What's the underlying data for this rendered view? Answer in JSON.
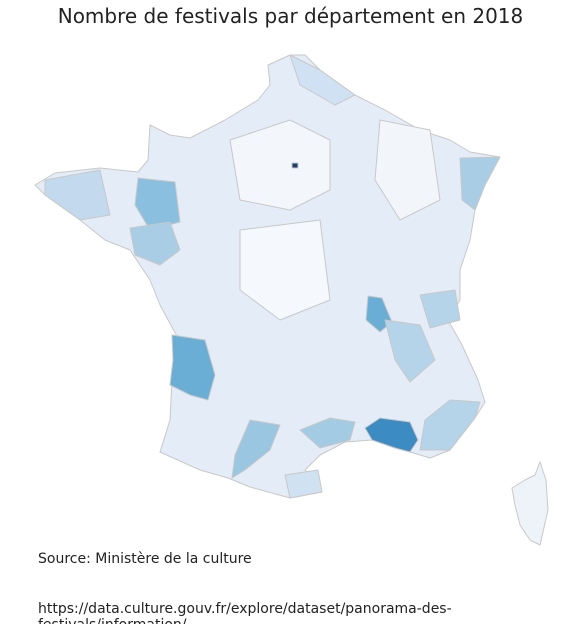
{
  "header": {
    "title": "Nombre de festivals par département en 2018"
  },
  "footer": {
    "source": "Source: Ministère de la culture",
    "url": "https://data.culture.gouv.fr/explore/dataset/panorama-des-festivals/information/"
  }
}
